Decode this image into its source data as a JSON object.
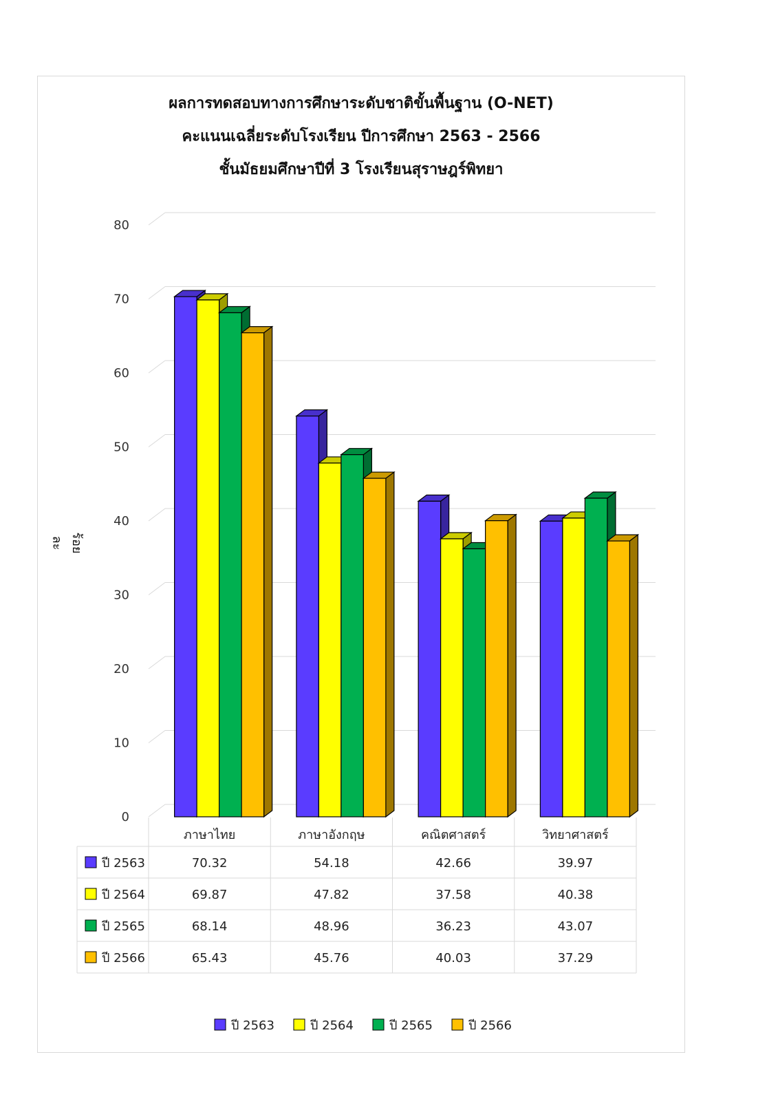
{
  "title": {
    "line1": "ผลการทดสอบทางการศึกษาระดับชาติขั้นพื้นฐาน (O-NET)",
    "line2": "คะแนนเฉลี่ยระดับโรงเรียน ปีการศึกษา 2563 - 2566",
    "line3": "ชั้นมัธยมศึกษาปีที่ 3 โรงเรียนสุราษฎร์พิทยา"
  },
  "chart_data": {
    "type": "bar",
    "title": "ผลการทดสอบทางการศึกษาระดับชาติขั้นพื้นฐาน (O-NET) คะแนนเฉลี่ยระดับโรงเรียน ปีการศึกษา 2563 - 2566 ชั้นมัธยมศึกษาปีที่ 3 โรงเรียนสุราษฎร์พิทยา",
    "xlabel": "",
    "ylabel": "ร้อยละ",
    "ylim": [
      0,
      80
    ],
    "yticks": [
      0,
      10,
      20,
      30,
      40,
      50,
      60,
      70,
      80
    ],
    "grid": true,
    "legend_position": "bottom",
    "style": "3d-clustered-column with data table",
    "categories": [
      "ภาษาไทย",
      "ภาษาอังกฤษ",
      "คณิตศาสตร์",
      "วิทยาศาสตร์"
    ],
    "series": [
      {
        "name": "ปี 2563",
        "color": "#5a3cff",
        "values": [
          70.32,
          54.18,
          42.66,
          39.97
        ]
      },
      {
        "name": "ปี 2564",
        "color": "#ffff00",
        "values": [
          69.87,
          47.82,
          37.58,
          40.38
        ]
      },
      {
        "name": "ปี 2565",
        "color": "#00b050",
        "values": [
          68.14,
          48.96,
          36.23,
          43.07
        ]
      },
      {
        "name": "ปี 2566",
        "color": "#ffc000",
        "values": [
          65.43,
          45.76,
          40.03,
          37.29
        ]
      }
    ],
    "table_values": [
      [
        "70.32",
        "54.18",
        "42.66",
        "39.97"
      ],
      [
        "69.87",
        "47.82",
        "37.58",
        "40.38"
      ],
      [
        "68.14",
        "48.96",
        "36.23",
        "43.07"
      ],
      [
        "65.43",
        "45.76",
        "40.03",
        "37.29"
      ]
    ]
  }
}
